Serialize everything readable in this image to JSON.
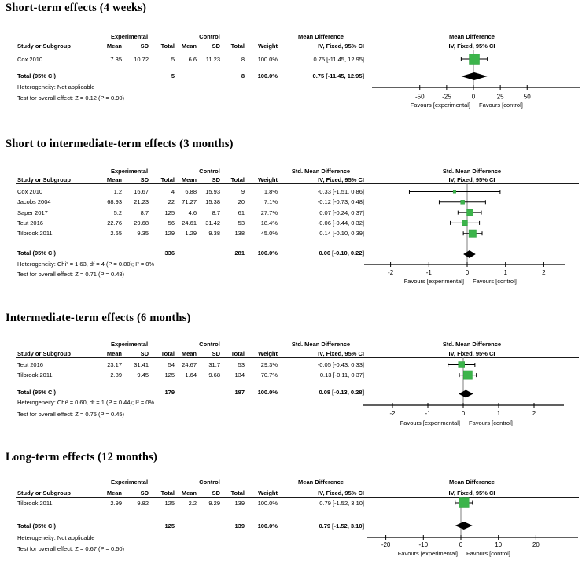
{
  "headers": {
    "study": "Study or Subgroup",
    "mean": "Mean",
    "sd": "SD",
    "total": "Total",
    "weight": "Weight",
    "group_experimental": "Experimental",
    "group_control": "Control"
  },
  "colors": {
    "marker_green": "#3cb44b",
    "marker_green_border": "#2e9e3f",
    "diamond_black": "#000000",
    "zero_line_gray": "#7f7f7f"
  },
  "chart_data": [
    {
      "type": "forest",
      "title": "Short-term effects (4 weeks)",
      "effect_measure": "Mean Difference",
      "method": "IV, Fixed, 95% CI",
      "favours_left": "Favours [experimental]",
      "favours_right": "Favours [control]",
      "x_ticks": [
        -50,
        -25,
        0,
        25,
        50
      ],
      "studies": [
        {
          "study": "Cox 2010",
          "mean_exp": 7.35,
          "sd_exp": 10.72,
          "total_exp": 5,
          "mean_ctrl": 6.6,
          "sd_ctrl": 11.23,
          "total_ctrl": 8,
          "weight": "100.0%",
          "weight_pct": 100.0,
          "estimate": 0.75,
          "ci_low": -11.45,
          "ci_high": 12.95,
          "ci_text": "0.75 [-11.45, 12.95]"
        }
      ],
      "total": {
        "label": "Total (95% CI)",
        "total_exp": 5,
        "total_ctrl": 8,
        "weight": "100.0%",
        "estimate": 0.75,
        "ci_low": -11.45,
        "ci_high": 12.95,
        "ci_text": "0.75 [-11.45, 12.95]"
      },
      "heterogeneity": "Heterogeneity: Not applicable",
      "overall_effect_test": "Test for overall effect: Z = 0.12 (P = 0.90)"
    },
    {
      "type": "forest",
      "title": "Short to intermediate-term effects (3 months)",
      "effect_measure": "Std. Mean Difference",
      "method": "IV, Fixed, 95% CI",
      "favours_left": "Favours [experimental]",
      "favours_right": "Favours [control]",
      "x_ticks": [
        -2,
        -1,
        0,
        1,
        2
      ],
      "studies": [
        {
          "study": "Cox 2010",
          "mean_exp": 1.2,
          "sd_exp": 16.67,
          "total_exp": 4,
          "mean_ctrl": 6.88,
          "sd_ctrl": 15.93,
          "total_ctrl": 9,
          "weight": "1.8%",
          "weight_pct": 1.8,
          "estimate": -0.33,
          "ci_low": -1.51,
          "ci_high": 0.86,
          "ci_text": "-0.33 [-1.51, 0.86]"
        },
        {
          "study": "Jacobs 2004",
          "mean_exp": 68.93,
          "sd_exp": 21.23,
          "total_exp": 22,
          "mean_ctrl": 71.27,
          "sd_ctrl": 15.38,
          "total_ctrl": 20,
          "weight": "7.1%",
          "weight_pct": 7.1,
          "estimate": -0.12,
          "ci_low": -0.73,
          "ci_high": 0.48,
          "ci_text": "-0.12 [-0.73, 0.48]"
        },
        {
          "study": "Saper 2017",
          "mean_exp": 5.2,
          "sd_exp": 8.7,
          "total_exp": 125,
          "mean_ctrl": 4.6,
          "sd_ctrl": 8.7,
          "total_ctrl": 61,
          "weight": "27.7%",
          "weight_pct": 27.7,
          "estimate": 0.07,
          "ci_low": -0.24,
          "ci_high": 0.37,
          "ci_text": "0.07 [-0.24, 0.37]"
        },
        {
          "study": "Teut 2016",
          "mean_exp": 22.76,
          "sd_exp": 29.68,
          "total_exp": 56,
          "mean_ctrl": 24.61,
          "sd_ctrl": 31.42,
          "total_ctrl": 53,
          "weight": "18.4%",
          "weight_pct": 18.4,
          "estimate": -0.06,
          "ci_low": -0.44,
          "ci_high": 0.32,
          "ci_text": "-0.06 [-0.44, 0.32]"
        },
        {
          "study": "Tilbrook 2011",
          "mean_exp": 2.65,
          "sd_exp": 9.35,
          "total_exp": 129,
          "mean_ctrl": 1.29,
          "sd_ctrl": 9.38,
          "total_ctrl": 138,
          "weight": "45.0%",
          "weight_pct": 45.0,
          "estimate": 0.14,
          "ci_low": -0.1,
          "ci_high": 0.39,
          "ci_text": "0.14 [-0.10, 0.39]"
        }
      ],
      "total": {
        "label": "Total (95% CI)",
        "total_exp": 336,
        "total_ctrl": 281,
        "weight": "100.0%",
        "estimate": 0.06,
        "ci_low": -0.1,
        "ci_high": 0.22,
        "ci_text": "0.06 [-0.10, 0.22]"
      },
      "heterogeneity": "Heterogeneity: Chi² = 1.63, df = 4 (P = 0.80); I² = 0%",
      "overall_effect_test": "Test for overall effect: Z = 0.71 (P = 0.48)"
    },
    {
      "type": "forest",
      "title": "Intermediate-term effects (6 months)",
      "effect_measure": "Std. Mean Difference",
      "method": "IV, Fixed, 95% CI",
      "favours_left": "Favours [experimental]",
      "favours_right": "Favours [control]",
      "x_ticks": [
        -2,
        -1,
        0,
        1,
        2
      ],
      "studies": [
        {
          "study": "Teut 2016",
          "mean_exp": 23.17,
          "sd_exp": 31.41,
          "total_exp": 54,
          "mean_ctrl": 24.67,
          "sd_ctrl": 31.7,
          "total_ctrl": 53,
          "weight": "29.3%",
          "weight_pct": 29.3,
          "estimate": -0.05,
          "ci_low": -0.43,
          "ci_high": 0.33,
          "ci_text": "-0.05 [-0.43, 0.33]"
        },
        {
          "study": "Tilbrook 2011",
          "mean_exp": 2.89,
          "sd_exp": 9.45,
          "total_exp": 125,
          "mean_ctrl": 1.64,
          "sd_ctrl": 9.68,
          "total_ctrl": 134,
          "weight": "70.7%",
          "weight_pct": 70.7,
          "estimate": 0.13,
          "ci_low": -0.11,
          "ci_high": 0.37,
          "ci_text": "0.13 [-0.11, 0.37]"
        }
      ],
      "total": {
        "label": "Total (95% CI)",
        "total_exp": 179,
        "total_ctrl": 187,
        "weight": "100.0%",
        "estimate": 0.08,
        "ci_low": -0.13,
        "ci_high": 0.28,
        "ci_text": "0.08 [-0.13, 0.28]"
      },
      "heterogeneity": "Heterogeneity: Chi² = 0.60, df = 1 (P = 0.44); I² = 0%",
      "overall_effect_test": "Test for overall effect: Z = 0.75 (P = 0.45)"
    },
    {
      "type": "forest",
      "title": "Long-term effects (12 months)",
      "effect_measure": "Mean Difference",
      "method": "IV, Fixed, 95% CI",
      "favours_left": "Favours [experimental]",
      "favours_right": "Favours [control]",
      "x_ticks": [
        -20,
        -10,
        0,
        10,
        20
      ],
      "studies": [
        {
          "study": "Tilbrook 2011",
          "mean_exp": 2.99,
          "sd_exp": 9.82,
          "total_exp": 125,
          "mean_ctrl": 2.2,
          "sd_ctrl": 9.29,
          "total_ctrl": 139,
          "weight": "100.0%",
          "weight_pct": 100.0,
          "estimate": 0.79,
          "ci_low": -1.52,
          "ci_high": 3.1,
          "ci_text": "0.79 [-1.52, 3.10]"
        }
      ],
      "total": {
        "label": "Total (95% CI)",
        "total_exp": 125,
        "total_ctrl": 139,
        "weight": "100.0%",
        "estimate": 0.79,
        "ci_low": -1.52,
        "ci_high": 3.1,
        "ci_text": "0.79 [-1.52, 3.10]"
      },
      "heterogeneity": "Heterogeneity: Not applicable",
      "overall_effect_test": "Test for overall effect: Z = 0.67 (P = 0.50)"
    }
  ]
}
